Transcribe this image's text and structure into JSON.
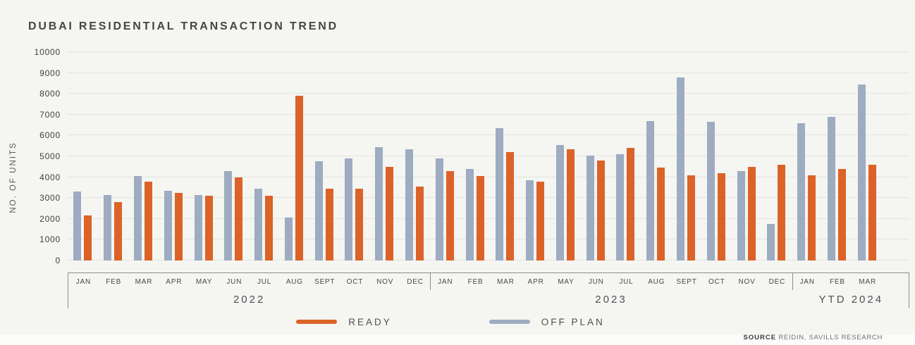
{
  "title": "DUBAI RESIDENTIAL TRANSACTION TREND",
  "chart_data": {
    "type": "bar",
    "title": "DUBAI RESIDENTIAL TRANSACTION TREND",
    "xlabel": "",
    "ylabel": "NO. OF UNITS",
    "ylim": [
      0,
      10000
    ],
    "yticks": [
      0,
      1000,
      2000,
      3000,
      4000,
      5000,
      6000,
      7000,
      8000,
      9000,
      10000
    ],
    "grid": "horizontal",
    "legend_position": "bottom-center",
    "categories": [
      "JAN",
      "FEB",
      "MAR",
      "APR",
      "MAY",
      "JUN",
      "JUL",
      "AUG",
      "SEPT",
      "OCT",
      "NOV",
      "DEC",
      "JAN",
      "FEB",
      "MAR",
      "APR",
      "MAY",
      "JUN",
      "JUL",
      "AUG",
      "SEPT",
      "OCT",
      "NOV",
      "DEC",
      "JAN",
      "FEB",
      "MAR"
    ],
    "year_groups": [
      {
        "label": "2022",
        "span": 12
      },
      {
        "label": "2023",
        "span": 12
      },
      {
        "label": "YTD 2024",
        "span": 3
      }
    ],
    "series": [
      {
        "name": "OFF PLAN",
        "color": "#9dacc1",
        "values": [
          3300,
          3150,
          4050,
          3350,
          3150,
          4300,
          3450,
          2050,
          4750,
          4900,
          5450,
          5350,
          4900,
          4400,
          6350,
          3850,
          5550,
          5050,
          5100,
          6700,
          8800,
          6650,
          4300,
          1750,
          6600,
          6900,
          8450
        ]
      },
      {
        "name": "READY",
        "color": "#dc6328",
        "values": [
          2150,
          2800,
          3800,
          3250,
          3100,
          4000,
          3100,
          7900,
          3450,
          3450,
          4500,
          3550,
          4300,
          4050,
          5200,
          3800,
          5350,
          4800,
          5400,
          4450,
          4100,
          4200,
          4500,
          4600,
          4100,
          4400,
          4600
        ]
      }
    ]
  },
  "legend": [
    {
      "label": "READY",
      "color": "#dc6328"
    },
    {
      "label": "OFF PLAN",
      "color": "#9dacc1"
    }
  ],
  "source": {
    "prefix": "SOURCE",
    "text": " REIDIN, SAVILLS RESEARCH"
  }
}
